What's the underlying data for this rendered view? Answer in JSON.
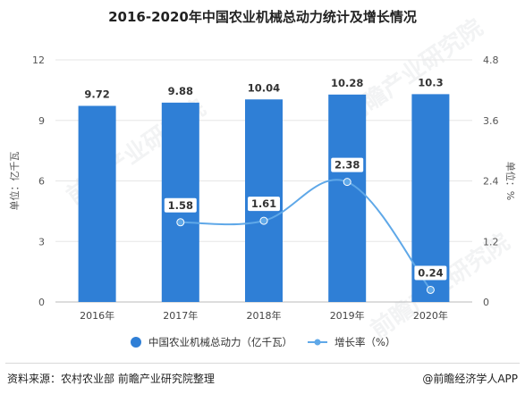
{
  "title": "2016-2020年中国农业机械总动力统计及增长情况",
  "chart_data": {
    "type": "bar",
    "categories": [
      "2016年",
      "2017年",
      "2018年",
      "2019年",
      "2020年"
    ],
    "series": [
      {
        "name": "中国农业机械总动力（亿千瓦）",
        "type": "bar",
        "axis": "left",
        "values": [
          9.72,
          9.88,
          10.04,
          10.28,
          10.3
        ],
        "color": "#2f7fd6"
      },
      {
        "name": "增长率（%）",
        "type": "line",
        "axis": "right",
        "values": [
          null,
          1.58,
          1.61,
          2.38,
          0.24
        ],
        "color": "#5fa8e8"
      }
    ],
    "bar_labels": [
      "9.72",
      "9.88",
      "10.04",
      "10.28",
      "10.3"
    ],
    "line_labels": [
      "",
      "1.58",
      "1.61",
      "2.38",
      "0.24"
    ],
    "ylabel": "单位：亿千瓦",
    "y2label": "单位：%",
    "ylim": [
      0,
      12
    ],
    "y2lim": [
      0,
      4.8
    ],
    "yticks": [
      "0",
      "3",
      "6",
      "9",
      "12"
    ],
    "y2ticks": [
      "0",
      "1.2",
      "2.4",
      "3.6",
      "4.8"
    ],
    "grid": true,
    "legend_position": "bottom"
  },
  "source": "资料来源：农村农业部 前瞻产业研究院整理",
  "credit": "@前瞻经济学人APP",
  "watermark": "前瞻产业研究院"
}
